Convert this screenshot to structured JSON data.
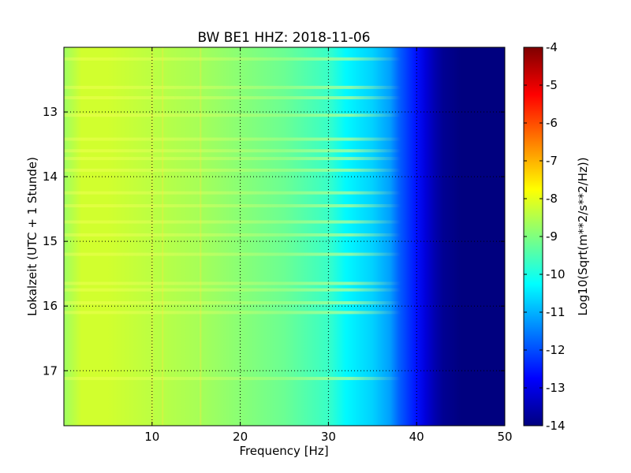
{
  "chart_data": {
    "type": "heatmap",
    "title": "BW BE1 HHZ: 2018-11-06",
    "xlabel": "Frequency [Hz]",
    "ylabel": "Lokalzeit (UTC + 1 Stunde)",
    "xlim": [
      0,
      50
    ],
    "ylim": [
      17.85,
      12.0
    ],
    "x_ticks": [
      "10",
      "20",
      "30",
      "40",
      "50"
    ],
    "y_ticks": [
      "13",
      "14",
      "15",
      "16",
      "17"
    ],
    "grid": true,
    "colormap": "jet",
    "colorbar": {
      "label": "Log10(Sqrt(m**2/s**2/Hz))",
      "range": [
        -14,
        -4
      ],
      "ticks": [
        "-4",
        "-5",
        "-6",
        "-7",
        "-8",
        "-9",
        "-10",
        "-11",
        "-12",
        "-13",
        "-14"
      ]
    },
    "frequency_profile": {
      "freq_hz": [
        0,
        2,
        5,
        10,
        15,
        20,
        25,
        30,
        32,
        35,
        37,
        38,
        40,
        41,
        42,
        43,
        45,
        50
      ],
      "log10_amplitude": [
        -8.7,
        -8.2,
        -8.2,
        -8.4,
        -8.6,
        -8.9,
        -9.2,
        -9.7,
        -10.3,
        -10.7,
        -11.2,
        -11.8,
        -12.6,
        -13.1,
        -13.5,
        -13.8,
        -14.0,
        -14.0
      ]
    },
    "bright_horizontal_bands_hour": [
      12.18,
      12.62,
      12.78,
      13.05,
      13.42,
      13.6,
      13.72,
      13.9,
      14.25,
      14.45,
      14.7,
      14.9,
      15.2,
      15.65,
      15.75,
      15.95,
      16.1,
      17.12
    ],
    "vertical_streaks_hz": [
      10.0,
      11.2,
      15.5
    ]
  },
  "colors": {
    "colormap_stops": [
      "#00007f",
      "#0000ff",
      "#007fff",
      "#00ffff",
      "#7fff7f",
      "#ffff00",
      "#ff7f00",
      "#ff0000",
      "#7f0000"
    ]
  }
}
